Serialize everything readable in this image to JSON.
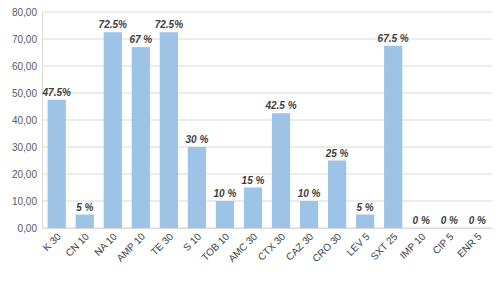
{
  "chart_data": {
    "type": "bar",
    "categories": [
      "K 30",
      "CN 10",
      "NA 10",
      "AMP 10",
      "TE 30",
      "S 10",
      "TOB 10",
      "AMC 30",
      "CTX 30",
      "CAZ 30",
      "CRO 30",
      "LEV 5",
      "SXT 25",
      "IMP 10",
      "CIP 5",
      "ENR 5"
    ],
    "values": [
      47.5,
      5,
      72.5,
      67,
      72.5,
      30,
      10,
      15,
      42.5,
      10,
      25,
      5,
      67.5,
      0,
      0,
      0
    ],
    "value_labels": [
      "47.5%",
      "5 %",
      "72.5%",
      "67 %",
      "72.5%",
      "30 %",
      "10 %",
      "15 %",
      "42.5 %",
      "10 %",
      "25 %",
      "5 %",
      "67.5 %",
      "0 %",
      "0 %",
      "0 %"
    ],
    "color": "#9dc3e6",
    "ylim": [
      0,
      80
    ],
    "yticks": [
      {
        "value": 0,
        "label": "0,00"
      },
      {
        "value": 10,
        "label": "10,00"
      },
      {
        "value": 20,
        "label": "20,00"
      },
      {
        "value": 30,
        "label": "30,00"
      },
      {
        "value": 40,
        "label": "40,00"
      },
      {
        "value": 50,
        "label": "50,00"
      },
      {
        "value": 60,
        "label": "60,00"
      },
      {
        "value": 70,
        "label": "70,00"
      },
      {
        "value": 80,
        "label": "80,00"
      }
    ],
    "grid": true,
    "data_labels": true
  }
}
